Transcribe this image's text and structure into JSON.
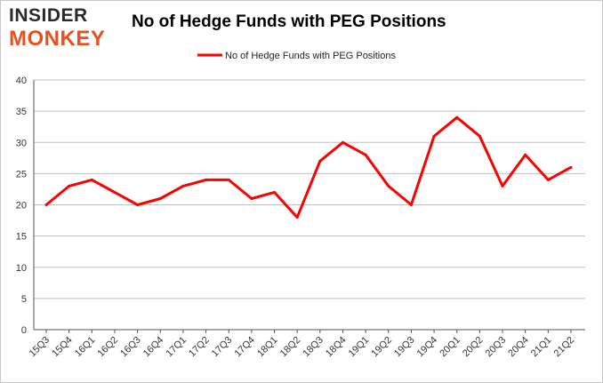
{
  "logo": {
    "line1": "INSIDER",
    "line2": "MONKEY"
  },
  "chart_data": {
    "type": "line",
    "title": "No of Hedge Funds with PEG Positions",
    "xlabel": "",
    "ylabel": "",
    "categories": [
      "15Q3",
      "15Q4",
      "16Q1",
      "16Q2",
      "16Q3",
      "16Q4",
      "17Q1",
      "17Q2",
      "17Q3",
      "17Q4",
      "18Q1",
      "18Q2",
      "18Q3",
      "18Q4",
      "19Q1",
      "19Q2",
      "19Q3",
      "19Q4",
      "20Q1",
      "20Q2",
      "20Q3",
      "20Q4",
      "21Q1",
      "21Q2"
    ],
    "series": [
      {
        "name": "No of Hedge Funds with PEG Positions",
        "values": [
          20,
          23,
          24,
          22,
          20,
          21,
          23,
          24,
          24,
          21,
          22,
          18,
          27,
          30,
          28,
          23,
          20,
          31,
          34,
          31,
          23,
          28,
          24,
          26
        ]
      }
    ],
    "ylim": [
      0,
      40
    ],
    "yticks": [
      0,
      5,
      10,
      15,
      20,
      25,
      30,
      35,
      40
    ],
    "grid": true,
    "legend_position": "top-center",
    "line_color": "#ff0000",
    "grid_color": "#c0c0c0"
  }
}
